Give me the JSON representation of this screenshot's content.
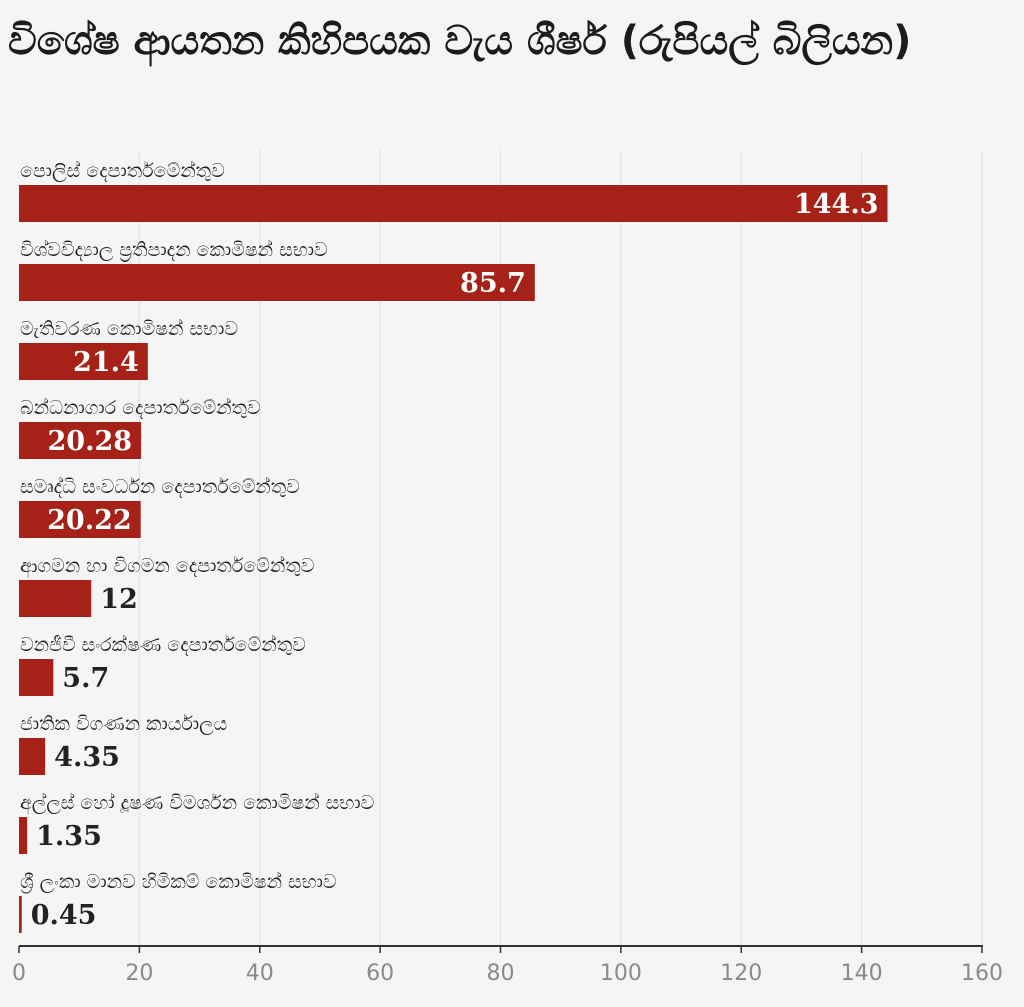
{
  "chart_data": {
    "type": "bar",
    "orientation": "horizontal",
    "title": "විශේෂ ආයතන කිහිපයක වැය ශීර්ෂ (රුපියල් බිලියන)",
    "categories": [
      "පොලිස් දෙපාර්තමේන්තුව",
      "විශ්වවිද්‍යාල ප්‍රතිපාදන කොමිෂන් සභාව",
      "මැතිවරණ කොමිෂන් සභාව",
      "බන්ධනාගාර දෙපාර්තමේන්තුව",
      "සමෘද්ධි සංවර්ධන දෙපාර්තමේන්තුව",
      "ආගමන හා විගමන දෙපාර්තමේන්තුව",
      "වනජීවී සංරක්ෂණ දෙපාර්තමේන්තුව",
      "ජාතික විගණන කාර්යාලය",
      "අල්ලස් හෝ දූෂණ විමර්ශන කොමිෂන් සභාව",
      "ශ්‍රී ලංකා මානව හිමිකම් කොමිෂන් සභාව"
    ],
    "values": [
      144.3,
      85.7,
      21.4,
      20.28,
      20.22,
      12,
      5.7,
      4.35,
      1.35,
      0.45
    ],
    "value_labels": [
      "144.3",
      "85.7",
      "21.4",
      "20.28",
      "20.22",
      "12",
      "5.7",
      "4.35",
      "1.35",
      "0.45"
    ],
    "xlim": [
      0,
      160
    ],
    "x_ticks": [
      0,
      20,
      40,
      60,
      80,
      100,
      120,
      140,
      160
    ],
    "grid": true,
    "colors": {
      "bar": "#a62117",
      "background": "#f5f5f5",
      "grid": "#e6e6e6",
      "axis": "#333333"
    }
  }
}
